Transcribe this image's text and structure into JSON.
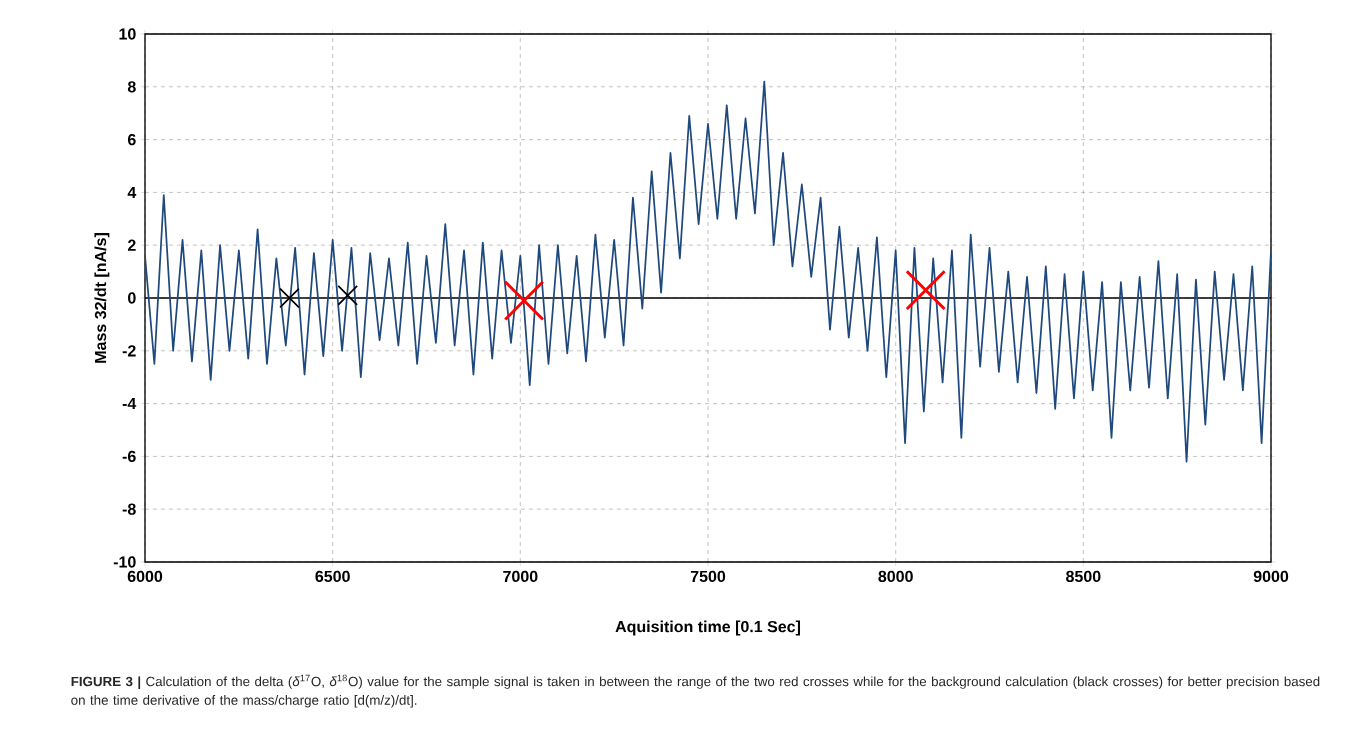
{
  "chart_data": {
    "type": "line",
    "xlabel": "Aquisition time [0.1 Sec]",
    "ylabel": "Mass 32/dt [nA/s]",
    "xlim": [
      6000,
      9000
    ],
    "ylim": [
      -10,
      10
    ],
    "xticks": [
      6000,
      6500,
      7000,
      7500,
      8000,
      8500,
      9000
    ],
    "yticks": [
      -10,
      -8,
      -6,
      -4,
      -2,
      0,
      2,
      4,
      6,
      8,
      10
    ],
    "grid": true,
    "ref_lines": [
      {
        "axis": "y",
        "value": 0,
        "color": "#000000"
      }
    ],
    "series": [
      {
        "color": "#1f497d",
        "x": [
          6000,
          6025,
          6050,
          6075,
          6100,
          6125,
          6150,
          6175,
          6200,
          6225,
          6250,
          6275,
          6300,
          6325,
          6350,
          6375,
          6400,
          6425,
          6450,
          6475,
          6500,
          6525,
          6550,
          6575,
          6600,
          6625,
          6650,
          6675,
          6700,
          6725,
          6750,
          6775,
          6800,
          6825,
          6850,
          6875,
          6900,
          6925,
          6950,
          6975,
          7000,
          7025,
          7050,
          7075,
          7100,
          7125,
          7150,
          7175,
          7200,
          7225,
          7250,
          7275,
          7300,
          7325,
          7350,
          7375,
          7400,
          7425,
          7450,
          7475,
          7500,
          7525,
          7550,
          7575,
          7600,
          7625,
          7650,
          7675,
          7700,
          7725,
          7750,
          7775,
          7800,
          7825,
          7850,
          7875,
          7900,
          7925,
          7950,
          7975,
          8000,
          8025,
          8050,
          8075,
          8100,
          8125,
          8150,
          8175,
          8200,
          8225,
          8250,
          8275,
          8300,
          8325,
          8350,
          8375,
          8400,
          8425,
          8450,
          8475,
          8500,
          8525,
          8550,
          8575,
          8600,
          8625,
          8650,
          8675,
          8700,
          8725,
          8750,
          8775,
          8800,
          8825,
          8850,
          8875,
          8900,
          8925,
          8950,
          8975,
          9000
        ],
        "values": [
          1.6,
          -2.5,
          3.9,
          -2.0,
          2.2,
          -2.4,
          1.8,
          -3.1,
          2.0,
          -2.0,
          1.8,
          -2.3,
          2.6,
          -2.5,
          1.5,
          -1.8,
          1.9,
          -2.9,
          1.7,
          -2.2,
          2.2,
          -2.0,
          1.9,
          -3.0,
          1.7,
          -1.6,
          1.5,
          -1.8,
          2.1,
          -2.5,
          1.6,
          -1.7,
          2.8,
          -1.8,
          1.8,
          -2.9,
          2.1,
          -2.3,
          1.8,
          -1.7,
          1.6,
          -3.3,
          2.0,
          -2.5,
          2.0,
          -2.1,
          1.6,
          -2.4,
          2.4,
          -1.5,
          2.2,
          -1.8,
          3.8,
          -0.4,
          4.8,
          0.2,
          5.5,
          1.5,
          6.9,
          2.8,
          6.6,
          3.0,
          7.3,
          3.0,
          6.8,
          3.2,
          8.2,
          2.0,
          5.5,
          1.2,
          4.3,
          0.8,
          3.8,
          -1.2,
          2.7,
          -1.5,
          1.9,
          -2.0,
          2.3,
          -3.0,
          1.8,
          -5.5,
          1.9,
          -4.3,
          1.5,
          -3.2,
          1.8,
          -5.3,
          2.4,
          -2.6,
          1.9,
          -2.8,
          1.0,
          -3.2,
          0.8,
          -3.6,
          1.2,
          -4.2,
          0.9,
          -3.8,
          1.0,
          -3.5,
          0.6,
          -5.3,
          0.6,
          -3.5,
          0.8,
          -3.4,
          1.4,
          -3.8,
          0.9,
          -6.2,
          0.7,
          -4.8,
          1.0,
          -3.1,
          0.9,
          -3.5,
          1.2,
          -5.5,
          1.8
        ]
      },
      {
        "type": "scatter",
        "marker": "cross",
        "color": "#000000",
        "x": [
          6385,
          6540
        ],
        "values": [
          0,
          0.1
        ]
      },
      {
        "type": "scatter",
        "marker": "cross",
        "color": "#ff0000",
        "x": [
          7010,
          8080
        ],
        "values": [
          -0.1,
          0.3
        ]
      }
    ],
    "annotations": [
      "**FIGURE 3 |** Calculation of the delta (*δ*$^{17}$O, *δ*$^{18}$O) value for the sample signal is taken in between the range of the two red crosses while for the background calculation (black crosses) for better precision based on the time derivative of the mass/charge ratio [d(m/z)/dt]."
    ]
  }
}
